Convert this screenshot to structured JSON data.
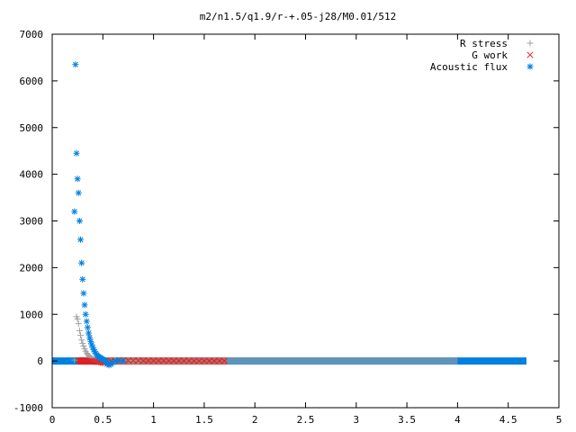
{
  "chart_data": {
    "type": "scatter",
    "title": "m2/n1.5/q1.9/r-+.05-j28/M0.01/512",
    "xlabel": "",
    "ylabel": "",
    "xlim": [
      0,
      5
    ],
    "ylim": [
      -1000,
      7000
    ],
    "x_ticks": [
      "0",
      "0.5",
      "1",
      "1.5",
      "2",
      "2.5",
      "3",
      "3.5",
      "4",
      "4.5",
      "5"
    ],
    "x_tick_values": [
      0,
      0.5,
      1,
      1.5,
      2,
      2.5,
      3,
      3.5,
      4,
      4.5,
      5
    ],
    "y_ticks": [
      "-1000",
      "0",
      "1000",
      "2000",
      "3000",
      "4000",
      "5000",
      "6000",
      "7000"
    ],
    "y_tick_values": [
      -1000,
      0,
      1000,
      2000,
      3000,
      4000,
      5000,
      6000,
      7000
    ],
    "legend_position": "top-right",
    "series": [
      {
        "name": "R stress",
        "marker": "plus",
        "color": "#a0a0a0",
        "x": [
          0.22,
          0.24,
          0.25,
          0.26,
          0.27,
          0.28,
          0.29,
          0.3,
          0.31,
          0.32,
          0.33,
          0.34,
          0.35,
          0.36,
          0.37,
          0.38,
          0.39,
          0.4,
          0.41,
          0.42,
          0.43,
          0.44,
          0.45,
          0.46,
          0.47,
          0.48,
          0.5,
          0.52,
          0.54,
          0.56,
          0.58,
          0.6,
          0.62,
          0.65,
          0.68,
          0.72,
          0.76,
          0.8,
          0.85
        ],
        "y": [
          20,
          950,
          900,
          800,
          650,
          550,
          450,
          380,
          320,
          260,
          210,
          170,
          140,
          110,
          90,
          70,
          55,
          40,
          30,
          20,
          10,
          0,
          -10,
          -20,
          -30,
          -40,
          -55,
          -60,
          -50,
          -30,
          -10,
          0,
          10,
          20,
          20,
          15,
          10,
          5,
          0
        ]
      },
      {
        "name": "G work",
        "marker": "cross",
        "color": "#e02020",
        "x": [
          0.26,
          0.28,
          0.3,
          0.32,
          0.34,
          0.36,
          0.38,
          0.4,
          0.42,
          0.44,
          0.46,
          0.48,
          0.5,
          0.52,
          0.55,
          0.58,
          0.62,
          0.66,
          0.7,
          0.75,
          0.8,
          0.85,
          0.9,
          0.95,
          1.0,
          1.05,
          1.1,
          1.15,
          1.2,
          1.25,
          1.3,
          1.35,
          1.4,
          1.45,
          1.5,
          1.55,
          1.6,
          1.65,
          1.7
        ],
        "y": [
          10,
          10,
          8,
          6,
          4,
          2,
          0,
          -5,
          -10,
          -15,
          -20,
          -25,
          -30,
          -35,
          -20,
          0,
          5,
          8,
          10,
          12,
          12,
          10,
          8,
          8,
          6,
          6,
          5,
          5,
          4,
          4,
          3,
          3,
          2,
          2,
          2,
          1,
          1,
          1,
          0
        ]
      },
      {
        "name": "Acoustic flux",
        "marker": "star",
        "color": "#0080e0",
        "x": [
          0.22,
          0.23,
          0.24,
          0.25,
          0.26,
          0.27,
          0.28,
          0.29,
          0.3,
          0.31,
          0.32,
          0.33,
          0.34,
          0.35,
          0.36,
          0.37,
          0.38,
          0.39,
          0.4,
          0.41,
          0.42,
          0.43,
          0.44,
          0.45,
          0.46,
          0.47,
          0.48,
          0.49,
          0.5,
          0.51,
          0.52,
          0.53,
          0.54,
          0.55,
          0.56,
          0.58,
          0.6,
          0.63,
          0.66,
          0.7
        ],
        "y": [
          3200,
          6350,
          4450,
          3900,
          3600,
          3000,
          2600,
          2100,
          1750,
          1450,
          1200,
          1000,
          850,
          720,
          600,
          500,
          420,
          350,
          290,
          240,
          200,
          165,
          135,
          110,
          90,
          75,
          60,
          45,
          35,
          20,
          10,
          0,
          -30,
          -60,
          -90,
          -70,
          -30,
          0,
          10,
          5
        ]
      }
    ],
    "dense_bands": [
      {
        "series": "Acoustic flux",
        "x_range": [
          0,
          4.68
        ],
        "y": 0,
        "color": "#0080e0"
      },
      {
        "series": "G work",
        "x_range": [
          0.25,
          1.72
        ],
        "y": 0,
        "color": "#e02020"
      },
      {
        "series": "R stress",
        "x_range": [
          0.45,
          4.0
        ],
        "y": 0,
        "color": "#a0a0a0"
      }
    ]
  }
}
